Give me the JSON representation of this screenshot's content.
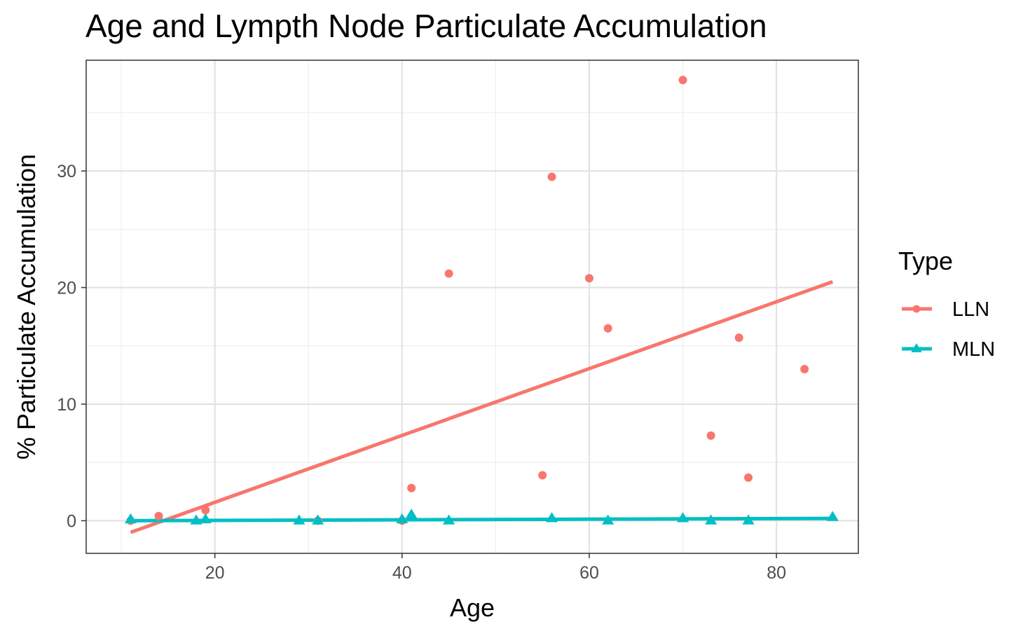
{
  "chart_data": {
    "type": "scatter",
    "title": "Age and Lympth Node Particulate Accumulation",
    "xlabel": "Age",
    "ylabel": "% Particulate Accumulation",
    "xlim": [
      6.25,
      88.75
    ],
    "ylim": [
      -2.8,
      39.5
    ],
    "x_ticks": [
      20,
      40,
      60,
      80
    ],
    "y_ticks": [
      0,
      10,
      20,
      30
    ],
    "grid": true,
    "legend": {
      "title": "Type",
      "position": "right"
    },
    "series": [
      {
        "name": "LLN",
        "color": "#F8766D",
        "marker": "circle",
        "points": [
          {
            "x": 11,
            "y": 0.0
          },
          {
            "x": 14,
            "y": 0.4
          },
          {
            "x": 19,
            "y": 0.9
          },
          {
            "x": 31,
            "y": 0.0
          },
          {
            "x": 40,
            "y": 0.0
          },
          {
            "x": 41,
            "y": 2.8
          },
          {
            "x": 45,
            "y": 21.2
          },
          {
            "x": 55,
            "y": 3.9
          },
          {
            "x": 56,
            "y": 29.5
          },
          {
            "x": 60,
            "y": 20.8
          },
          {
            "x": 62,
            "y": 16.5
          },
          {
            "x": 70,
            "y": 37.8
          },
          {
            "x": 73,
            "y": 7.3
          },
          {
            "x": 76,
            "y": 15.7
          },
          {
            "x": 77,
            "y": 3.7
          },
          {
            "x": 83,
            "y": 13.0
          }
        ],
        "fit": {
          "x": [
            11,
            86
          ],
          "y": [
            -1.0,
            20.5
          ]
        }
      },
      {
        "name": "MLN",
        "color": "#00BFC4",
        "marker": "triangle",
        "points": [
          {
            "x": 11,
            "y": 0.1
          },
          {
            "x": 18,
            "y": 0.0
          },
          {
            "x": 19,
            "y": 0.1
          },
          {
            "x": 29,
            "y": 0.0
          },
          {
            "x": 31,
            "y": 0.0
          },
          {
            "x": 40,
            "y": 0.1
          },
          {
            "x": 41,
            "y": 0.5
          },
          {
            "x": 45,
            "y": 0.0
          },
          {
            "x": 56,
            "y": 0.2
          },
          {
            "x": 62,
            "y": 0.0
          },
          {
            "x": 70,
            "y": 0.2
          },
          {
            "x": 73,
            "y": 0.0
          },
          {
            "x": 77,
            "y": 0.0
          },
          {
            "x": 86,
            "y": 0.3
          }
        ],
        "fit": {
          "x": [
            11,
            86
          ],
          "y": [
            0.0,
            0.2
          ]
        }
      }
    ]
  }
}
